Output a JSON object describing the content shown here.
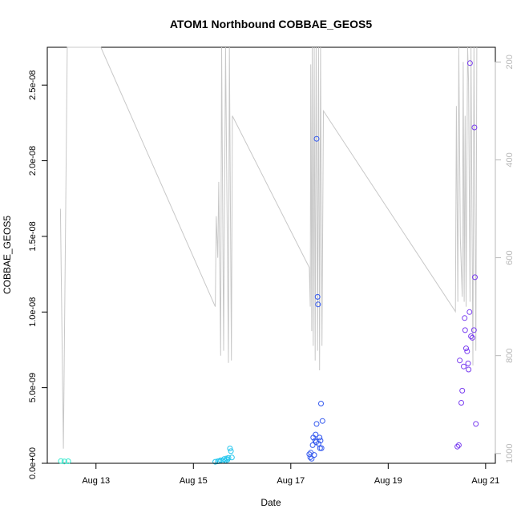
{
  "chart_data": {
    "type": "scatter",
    "title": "ATOM1 Northbound COBBAE_GEOS5",
    "xlabel": "Date",
    "ylabel": "COBBAE_GEOS5",
    "x_unit": "days (August)",
    "xlim": [
      12.0,
      21.2
    ],
    "ylim": [
      0,
      2.75e-08
    ],
    "x_ticks": [
      {
        "value": 13,
        "label": "Aug 13"
      },
      {
        "value": 15,
        "label": "Aug 15"
      },
      {
        "value": 17,
        "label": "Aug 17"
      },
      {
        "value": 19,
        "label": "Aug 19"
      },
      {
        "value": 21,
        "label": "Aug 21"
      }
    ],
    "y_ticks": [
      {
        "value": 0,
        "label": "0.0e+00"
      },
      {
        "value": 5e-09,
        "label": "5.0e-09"
      },
      {
        "value": 1e-08,
        "label": "1.0e-08"
      },
      {
        "value": 1.5e-08,
        "label": "1.5e-08"
      },
      {
        "value": 2e-08,
        "label": "2.0e-08"
      },
      {
        "value": 2.5e-08,
        "label": "2.5e-08"
      }
    ],
    "right_axis": {
      "ylim": [
        1020,
        170
      ],
      "ticks": [
        {
          "value": 200,
          "label": "200"
        },
        {
          "value": 400,
          "label": "400"
        },
        {
          "value": 600,
          "label": "600"
        },
        {
          "value": 800,
          "label": "800"
        },
        {
          "value": 1000,
          "label": "1000"
        }
      ],
      "color": "#b8b8b8"
    },
    "grid": false,
    "legend": "none",
    "series": [
      {
        "color": "#33e8cc",
        "points": [
          [
            12.28,
            1.5e-10
          ],
          [
            12.35,
            1.2e-10
          ],
          [
            12.43,
            1.3e-10
          ]
        ]
      },
      {
        "color": "#22c6ee",
        "points": [
          [
            15.45,
            1e-10
          ],
          [
            15.5,
            1.3e-10
          ],
          [
            15.53,
            1.5e-10
          ],
          [
            15.56,
            2e-10
          ],
          [
            15.6,
            1.6e-10
          ],
          [
            15.63,
            2.8e-10
          ],
          [
            15.66,
            1.8e-10
          ],
          [
            15.68,
            3.2e-10
          ],
          [
            15.7,
            2.4e-10
          ],
          [
            15.72,
            3.6e-10
          ],
          [
            15.75,
            9.8e-10
          ],
          [
            15.77,
            8e-10
          ],
          [
            15.79,
            3.8e-10
          ]
        ]
      },
      {
        "color": "#3358ee",
        "points": [
          [
            17.38,
            6e-10
          ],
          [
            17.4,
            4e-10
          ],
          [
            17.41,
            7e-10
          ],
          [
            17.43,
            3e-10
          ],
          [
            17.45,
            1.2e-09
          ],
          [
            17.46,
            1.7e-09
          ],
          [
            17.48,
            5.5e-10
          ],
          [
            17.5,
            1.5e-09
          ],
          [
            17.51,
            1.9e-09
          ],
          [
            17.52,
            1.4e-09
          ],
          [
            17.53,
            2.6e-09
          ],
          [
            17.53,
            2.145e-08
          ],
          [
            17.55,
            1.1e-08
          ],
          [
            17.56,
            1.05e-08
          ],
          [
            17.57,
            1.3e-09
          ],
          [
            17.59,
            1.7e-09
          ],
          [
            17.6,
            1e-09
          ],
          [
            17.61,
            1.5e-09
          ],
          [
            17.62,
            3.95e-09
          ],
          [
            17.63,
            1e-09
          ],
          [
            17.65,
            2.8e-09
          ]
        ]
      },
      {
        "color": "#7a3ef0",
        "points": [
          [
            20.42,
            1.1e-09
          ],
          [
            20.45,
            1.2e-09
          ],
          [
            20.47,
            6.8e-09
          ],
          [
            20.5,
            4e-09
          ],
          [
            20.52,
            4.8e-09
          ],
          [
            20.55,
            6.4e-09
          ],
          [
            20.57,
            9.6e-09
          ],
          [
            20.58,
            8.8e-09
          ],
          [
            20.6,
            7.6e-09
          ],
          [
            20.62,
            7.4e-09
          ],
          [
            20.64,
            6.6e-09
          ],
          [
            20.65,
            6.2e-09
          ],
          [
            20.67,
            1e-08
          ],
          [
            20.68,
            2.645e-08
          ],
          [
            20.7,
            8.4e-09
          ],
          [
            20.73,
            8.3e-09
          ],
          [
            20.76,
            8.8e-09
          ],
          [
            20.77,
            2.22e-08
          ],
          [
            20.78,
            1.23e-08
          ],
          [
            20.8,
            2.6e-09
          ]
        ]
      }
    ],
    "line_series": {
      "color": "#c8c8c8",
      "axis": "right",
      "points": [
        [
          12.27,
          500
        ],
        [
          12.33,
          990
        ],
        [
          12.41,
          160
        ],
        [
          13.1,
          160
        ],
        [
          15.45,
          700
        ],
        [
          15.47,
          515
        ],
        [
          15.5,
          600
        ],
        [
          15.52,
          445
        ],
        [
          15.56,
          800
        ],
        [
          15.58,
          160
        ],
        [
          15.62,
          790
        ],
        [
          15.66,
          160
        ],
        [
          15.72,
          815
        ],
        [
          15.74,
          160
        ],
        [
          15.78,
          810
        ],
        [
          15.8,
          310
        ],
        [
          17.38,
          620
        ],
        [
          17.4,
          700
        ],
        [
          17.41,
          205
        ],
        [
          17.43,
          750
        ],
        [
          17.44,
          160
        ],
        [
          17.46,
          780
        ],
        [
          17.48,
          160
        ],
        [
          17.5,
          810
        ],
        [
          17.52,
          160
        ],
        [
          17.55,
          790
        ],
        [
          17.57,
          160
        ],
        [
          17.59,
          830
        ],
        [
          17.61,
          160
        ],
        [
          17.64,
          780
        ],
        [
          17.67,
          300
        ],
        [
          20.38,
          710
        ],
        [
          20.4,
          290
        ],
        [
          20.43,
          690
        ],
        [
          20.45,
          160
        ],
        [
          20.48,
          560
        ],
        [
          20.52,
          680
        ],
        [
          20.54,
          200
        ],
        [
          20.56,
          690
        ],
        [
          20.58,
          310
        ],
        [
          20.6,
          700
        ],
        [
          20.63,
          160
        ],
        [
          20.65,
          240
        ],
        [
          20.68,
          690
        ],
        [
          20.7,
          160
        ],
        [
          20.74,
          820
        ],
        [
          20.76,
          160
        ],
        [
          20.8,
          790
        ],
        [
          20.82,
          160
        ]
      ]
    }
  }
}
